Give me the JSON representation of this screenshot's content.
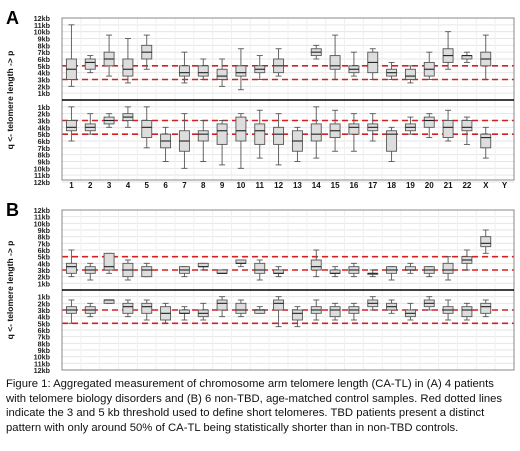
{
  "figure": {
    "y_axis_title_parts": [
      "q",
      "<-",
      "telomere length",
      "->",
      "p"
    ],
    "y_tick_labels": [
      "1kb",
      "2kb",
      "3kb",
      "4kb",
      "5kb",
      "6kb",
      "7kb",
      "8kb",
      "9kb",
      "10kb",
      "11kb",
      "12kb"
    ],
    "colors": {
      "box_edge": "#555555",
      "box_fill": "#dddddd",
      "median": "#222222",
      "threshold": "#d42020",
      "grid": "#e6e6e6",
      "divider": "#000000"
    }
  },
  "chart_data": [
    {
      "type": "box",
      "panel_label": "A",
      "categories": [
        "1",
        "2",
        "3",
        "4",
        "5",
        "6",
        "7",
        "8",
        "9",
        "10",
        "11",
        "12",
        "13",
        "14",
        "15",
        "16",
        "17",
        "18",
        "19",
        "20",
        "21",
        "22",
        "X",
        "Y"
      ],
      "x_tick_labels": [
        "1",
        "3",
        "5",
        "7",
        "9",
        "11",
        "13",
        "15",
        "17",
        "19",
        "21",
        "X",
        "2",
        "4",
        "6",
        "8",
        "10",
        "12",
        "14",
        "16",
        "18",
        "20",
        "22",
        "Y"
      ],
      "ylim": [
        0,
        12
      ],
      "ylabel_units": "kb",
      "thresholds": [
        3,
        5
      ],
      "p_arm": [
        {
          "min": 2,
          "q1": 3,
          "median": 4.5,
          "q3": 6,
          "max": 11
        },
        {
          "min": 4,
          "q1": 4.5,
          "median": 5.5,
          "q3": 6,
          "max": 6.5
        },
        {
          "min": 3.5,
          "q1": 5,
          "median": 6,
          "q3": 7,
          "max": 9.5
        },
        {
          "min": 2.5,
          "q1": 3.5,
          "median": 4.5,
          "q3": 6,
          "max": 9
        },
        {
          "min": 4.5,
          "q1": 6,
          "median": 7,
          "q3": 8,
          "max": 9.5
        },
        null,
        {
          "min": 2.5,
          "q1": 3.5,
          "median": 4,
          "q3": 5,
          "max": 7
        },
        {
          "min": 3,
          "q1": 3.5,
          "median": 4,
          "q3": 5,
          "max": 6
        },
        {
          "min": 2,
          "q1": 3,
          "median": 3.5,
          "q3": 4.5,
          "max": 6
        },
        {
          "min": 1.5,
          "q1": 3.5,
          "median": 4,
          "q3": 5,
          "max": 7.5
        },
        {
          "min": 3,
          "q1": 4,
          "median": 4.5,
          "q3": 5,
          "max": 6.5
        },
        {
          "min": 3.5,
          "q1": 4,
          "median": 5,
          "q3": 6,
          "max": 7.5
        },
        null,
        {
          "min": 6,
          "q1": 6.5,
          "median": 7,
          "q3": 7.5,
          "max": 8
        },
        {
          "min": 3,
          "q1": 4.5,
          "median": 5,
          "q3": 6.5,
          "max": 9.5
        },
        {
          "min": 3.5,
          "q1": 4,
          "median": 4.5,
          "q3": 5,
          "max": 7
        },
        {
          "min": 3,
          "q1": 4,
          "median": 5.5,
          "q3": 7,
          "max": 7.5
        },
        {
          "min": 3,
          "q1": 3.5,
          "median": 4,
          "q3": 4.5,
          "max": 5.5
        },
        {
          "min": 2.5,
          "q1": 3,
          "median": 3.5,
          "q3": 4.5,
          "max": 5
        },
        {
          "min": 3,
          "q1": 3.5,
          "median": 4.5,
          "q3": 5.5,
          "max": 7
        },
        {
          "min": 4.5,
          "q1": 5.5,
          "median": 6.5,
          "q3": 7.5,
          "max": 10
        },
        {
          "min": 5.5,
          "q1": 6,
          "median": 6.5,
          "q3": 6.5,
          "max": 7
        },
        {
          "min": 3,
          "q1": 5,
          "median": 6,
          "q3": 7,
          "max": 9.5
        },
        null
      ],
      "q_arm": [
        {
          "min": 1,
          "q1": 3,
          "median": 4,
          "q3": 4.5,
          "max": 6
        },
        {
          "min": 2,
          "q1": 3.5,
          "median": 4,
          "q3": 4.5,
          "max": 5
        },
        {
          "min": 2,
          "q1": 2.5,
          "median": 3,
          "q3": 3.5,
          "max": 4
        },
        {
          "min": 1,
          "q1": 2,
          "median": 2.5,
          "q3": 3,
          "max": 4
        },
        {
          "min": 1,
          "q1": 3,
          "median": 4,
          "q3": 5.5,
          "max": 7
        },
        {
          "min": 4,
          "q1": 5,
          "median": 6,
          "q3": 7,
          "max": 9
        },
        {
          "min": 2,
          "q1": 4.5,
          "median": 6,
          "q3": 7.5,
          "max": 10
        },
        {
          "min": 3,
          "q1": 4.5,
          "median": 5,
          "q3": 6,
          "max": 9
        },
        {
          "min": 3,
          "q1": 3.5,
          "median": 4.5,
          "q3": 6.5,
          "max": 9.5
        },
        {
          "min": 2,
          "q1": 2.5,
          "median": 4.5,
          "q3": 6,
          "max": 10
        },
        {
          "min": 1.5,
          "q1": 3.5,
          "median": 4.5,
          "q3": 6.5,
          "max": 8.5
        },
        {
          "min": 2,
          "q1": 4,
          "median": 5,
          "q3": 6.5,
          "max": 9.5
        },
        {
          "min": 4,
          "q1": 4.5,
          "median": 6,
          "q3": 7.5,
          "max": 9
        },
        {
          "min": 1,
          "q1": 3.5,
          "median": 5,
          "q3": 6,
          "max": 8.5
        },
        {
          "min": 1.5,
          "q1": 3.5,
          "median": 4.5,
          "q3": 5.5,
          "max": 7.5
        },
        {
          "min": 2,
          "q1": 3.5,
          "median": 4,
          "q3": 5,
          "max": 7.5
        },
        {
          "min": 2,
          "q1": 3.5,
          "median": 4,
          "q3": 4.5,
          "max": 6
        },
        {
          "min": 4,
          "q1": 4.5,
          "median": 5,
          "q3": 7.5,
          "max": 9
        },
        {
          "min": 2.5,
          "q1": 3.5,
          "median": 4,
          "q3": 4.5,
          "max": 5
        },
        {
          "min": 2,
          "q1": 2.5,
          "median": 3,
          "q3": 4,
          "max": 5.5
        },
        {
          "min": 1.5,
          "q1": 3,
          "median": 4,
          "q3": 5.5,
          "max": 6
        },
        {
          "min": 2.5,
          "q1": 3,
          "median": 4,
          "q3": 4.5,
          "max": 6.5
        },
        {
          "min": 4,
          "q1": 5,
          "median": 5.5,
          "q3": 7,
          "max": 8.5
        },
        null
      ]
    },
    {
      "type": "box",
      "panel_label": "B",
      "categories": [
        "1",
        "2",
        "3",
        "4",
        "5",
        "6",
        "7",
        "8",
        "9",
        "10",
        "11",
        "12",
        "13",
        "14",
        "15",
        "16",
        "17",
        "18",
        "19",
        "20",
        "21",
        "22",
        "X",
        "Y"
      ],
      "x_tick_labels": [
        "1",
        "3",
        "5",
        "7",
        "9",
        "11",
        "13",
        "15",
        "17",
        "19",
        "21",
        "X",
        "2",
        "4",
        "6",
        "8",
        "10",
        "12",
        "14",
        "16",
        "18",
        "20",
        "22",
        "Y"
      ],
      "ylim": [
        0,
        12
      ],
      "ylabel_units": "kb",
      "thresholds": [
        3,
        5
      ],
      "p_arm": [
        {
          "min": 2,
          "q1": 2.5,
          "median": 3.5,
          "q3": 4,
          "max": 6
        },
        {
          "min": 1.5,
          "q1": 2.5,
          "median": 3,
          "q3": 3.5,
          "max": 4
        },
        {
          "min": 2.5,
          "q1": 3,
          "median": 3.5,
          "q3": 5.5,
          "max": 5.5
        },
        {
          "min": 1.5,
          "q1": 2,
          "median": 3,
          "q3": 4,
          "max": 4.5
        },
        {
          "min": 2,
          "q1": 2,
          "median": 3,
          "q3": 3.5,
          "max": 4
        },
        null,
        {
          "min": 2,
          "q1": 2.5,
          "median": 3,
          "q3": 3.5,
          "max": 3.5
        },
        {
          "min": 3,
          "q1": 3.5,
          "median": 3.5,
          "q3": 4,
          "max": 4
        },
        {
          "min": 2.5,
          "q1": 2.5,
          "median": 2.5,
          "q3": 3,
          "max": 3
        },
        {
          "min": 3.5,
          "q1": 4,
          "median": 4,
          "q3": 4.5,
          "max": 4.5
        },
        {
          "min": 1.5,
          "q1": 2.5,
          "median": 3,
          "q3": 4,
          "max": 4.5
        },
        {
          "min": 2,
          "q1": 2.5,
          "median": 2.5,
          "q3": 3,
          "max": 3.5
        },
        null,
        {
          "min": 2,
          "q1": 3,
          "median": 3.5,
          "q3": 4.5,
          "max": 6
        },
        {
          "min": 2,
          "q1": 2.5,
          "median": 2.5,
          "q3": 3,
          "max": 3.5
        },
        {
          "min": 2,
          "q1": 2.5,
          "median": 3,
          "q3": 3.5,
          "max": 4
        },
        {
          "min": 2,
          "q1": 2.5,
          "median": 2.5,
          "q3": 2.5,
          "max": 3
        },
        {
          "min": 1.5,
          "q1": 2.5,
          "median": 3,
          "q3": 3.5,
          "max": 3.5
        },
        {
          "min": 2.5,
          "q1": 3,
          "median": 3,
          "q3": 3.5,
          "max": 4
        },
        {
          "min": 2,
          "q1": 2.5,
          "median": 3,
          "q3": 3.5,
          "max": 3.5
        },
        {
          "min": 1.5,
          "q1": 2.5,
          "median": 3,
          "q3": 4,
          "max": 5
        },
        {
          "min": 3,
          "q1": 4,
          "median": 4.5,
          "q3": 5,
          "max": 6
        },
        {
          "min": 5.5,
          "q1": 6.5,
          "median": 7,
          "q3": 8,
          "max": 9
        },
        null
      ],
      "q_arm": [
        {
          "min": 1.5,
          "q1": 2.5,
          "median": 3,
          "q3": 3.5,
          "max": 5
        },
        {
          "min": 2,
          "q1": 2.5,
          "median": 3,
          "q3": 3.5,
          "max": 4
        },
        {
          "min": 1.5,
          "q1": 1.5,
          "median": 1.5,
          "q3": 2,
          "max": 2
        },
        {
          "min": 1.5,
          "q1": 2,
          "median": 2.5,
          "q3": 3.5,
          "max": 4
        },
        {
          "min": 1.5,
          "q1": 2,
          "median": 2.5,
          "q3": 3.5,
          "max": 4.5
        },
        {
          "min": 2,
          "q1": 2.5,
          "median": 3.5,
          "q3": 4.5,
          "max": 5
        },
        {
          "min": 2.5,
          "q1": 3,
          "median": 3.5,
          "q3": 3.5,
          "max": 4.5
        },
        {
          "min": 2,
          "q1": 3,
          "median": 3.5,
          "q3": 4,
          "max": 4.5
        },
        {
          "min": 1,
          "q1": 1.5,
          "median": 2,
          "q3": 3,
          "max": 4
        },
        {
          "min": 1.5,
          "q1": 2,
          "median": 3,
          "q3": 3.5,
          "max": 4
        },
        {
          "min": 2.5,
          "q1": 3,
          "median": 3,
          "q3": 3.5,
          "max": 3.5
        },
        {
          "min": 1,
          "q1": 1.5,
          "median": 2,
          "q3": 3,
          "max": 5.5
        },
        {
          "min": 2.5,
          "q1": 3,
          "median": 3.5,
          "q3": 4.5,
          "max": 5.5
        },
        {
          "min": 1.5,
          "q1": 2.5,
          "median": 3,
          "q3": 3.5,
          "max": 4.5
        },
        {
          "min": 2,
          "q1": 2.5,
          "median": 3,
          "q3": 4,
          "max": 4.5
        },
        {
          "min": 2,
          "q1": 2.5,
          "median": 3,
          "q3": 3.5,
          "max": 4.5
        },
        {
          "min": 1,
          "q1": 1.5,
          "median": 2,
          "q3": 2.5,
          "max": 3
        },
        {
          "min": 1.5,
          "q1": 2,
          "median": 2.5,
          "q3": 3,
          "max": 3.5
        },
        {
          "min": 2,
          "q1": 3,
          "median": 3.5,
          "q3": 4,
          "max": 4.5
        },
        {
          "min": 1,
          "q1": 1.5,
          "median": 2,
          "q3": 2.5,
          "max": 3
        },
        {
          "min": 1.5,
          "q1": 2.5,
          "median": 3,
          "q3": 3.5,
          "max": 4.5
        },
        {
          "min": 2,
          "q1": 2.5,
          "median": 3,
          "q3": 4,
          "max": 4.5
        },
        {
          "min": 1.5,
          "q1": 2,
          "median": 2.5,
          "q3": 3.5,
          "max": 4
        },
        null
      ]
    }
  ],
  "caption": "Figure 1: Aggregated measurement of chromosome arm telomere length (CA-TL) in (A) 4 patients with telomere biology disorders and (B) 6 non-TBD, age-matched control samples. Red dotted lines indicate the 3 and 5 kb threshold used to define short telomeres. TBD patients present a distinct pattern with only around 50% of CA-TL being statistically shorter than in non-TBD controls."
}
